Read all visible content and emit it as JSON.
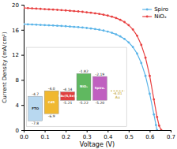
{
  "chart_data": [
    {
      "type": "line",
      "xlabel": "Voltage (V)",
      "ylabel": "Current Density (mA/cm²)",
      "xlim": [
        0.0,
        0.7
      ],
      "ylim": [
        0,
        20
      ],
      "xticks": [
        {
          "value": 0.0,
          "label": "0.0"
        },
        0.1,
        0.2,
        0.3,
        0.4,
        0.5,
        0.6,
        0.7
      ],
      "yticks": [
        0,
        4,
        8,
        12,
        16,
        20
      ],
      "grid": false,
      "legend": "upper right",
      "series": [
        {
          "name": "Spiro",
          "color": "#5ab4e8",
          "marker": "o",
          "x": [
            0.0,
            0.02,
            0.04,
            0.06,
            0.08,
            0.1,
            0.12,
            0.14,
            0.16,
            0.18,
            0.2,
            0.22,
            0.24,
            0.26,
            0.28,
            0.3,
            0.32,
            0.34,
            0.36,
            0.38,
            0.4,
            0.42,
            0.44,
            0.46,
            0.48,
            0.5,
            0.52,
            0.54,
            0.56,
            0.58,
            0.6,
            0.62,
            0.63,
            0.635
          ],
          "values": [
            16.9,
            16.87,
            16.84,
            16.81,
            16.78,
            16.75,
            16.72,
            16.69,
            16.65,
            16.61,
            16.57,
            16.52,
            16.47,
            16.42,
            16.36,
            16.29,
            16.21,
            16.12,
            16.01,
            15.88,
            15.72,
            15.52,
            15.27,
            14.95,
            14.54,
            13.99,
            13.25,
            12.2,
            10.7,
            8.65,
            5.8,
            2.5,
            0.8,
            0.0
          ]
        },
        {
          "name": "NiOₓ",
          "color": "#e84040",
          "marker": "o",
          "x": [
            0.0,
            0.02,
            0.04,
            0.06,
            0.08,
            0.1,
            0.12,
            0.14,
            0.16,
            0.18,
            0.2,
            0.22,
            0.24,
            0.26,
            0.28,
            0.3,
            0.32,
            0.34,
            0.36,
            0.38,
            0.4,
            0.42,
            0.44,
            0.46,
            0.48,
            0.5,
            0.52,
            0.54,
            0.56,
            0.58,
            0.6,
            0.62,
            0.635,
            0.645,
            0.655
          ],
          "values": [
            19.5,
            19.46,
            19.42,
            19.38,
            19.34,
            19.3,
            19.26,
            19.22,
            19.18,
            19.14,
            19.09,
            19.04,
            18.99,
            18.93,
            18.87,
            18.8,
            18.72,
            18.63,
            18.53,
            18.41,
            18.27,
            18.09,
            17.87,
            17.59,
            17.23,
            16.74,
            16.05,
            15.05,
            13.6,
            11.55,
            8.65,
            4.9,
            2.1,
            0.7,
            0.0
          ]
        }
      ]
    },
    {
      "type": "floating_bar",
      "categories": [
        "FTO",
        "CdS",
        "Sb₂(S,Se)₃",
        "NiOₓ",
        "Spiro."
      ],
      "values": [
        -4.7,
        -4.0,
        -4.14,
        -1.82,
        -2.19
      ],
      "bottoms": [
        -7.8,
        -6.9,
        -5.21,
        -5.22,
        -5.2
      ],
      "value_labels": [
        "-4.7",
        "-4.0",
        "-4.14",
        "-1.82",
        "-2.19"
      ],
      "bottom_labels": [
        "-7.8",
        "-6.9",
        "-5.21",
        "-5.22",
        "-5.20"
      ],
      "colors": [
        "#b8d8f0",
        "#f0b830",
        "#e04040",
        "#60b860",
        "#c060c0"
      ],
      "ylim": [
        -8.5,
        1.5
      ],
      "tick_labels": false,
      "data_labels": true,
      "annotations": [
        {
          "text": "-4.01\nAu",
          "y": -4.01,
          "color": "#b8960c"
        }
      ]
    }
  ]
}
